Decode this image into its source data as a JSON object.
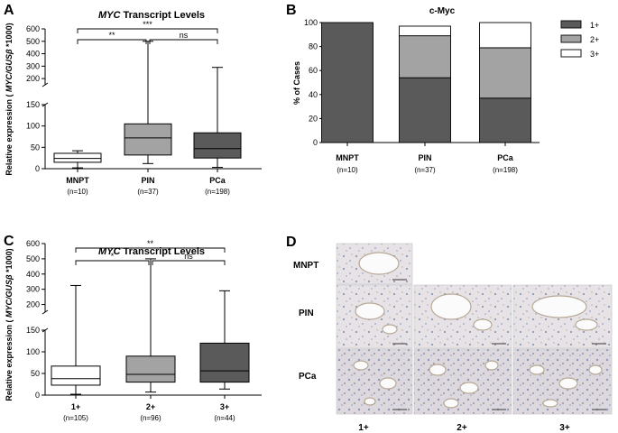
{
  "panelA": {
    "letter": "A",
    "title_italic": "MYC",
    "title_rest": " Transcript Levels",
    "ylabel_pre": "Relative expression ( ",
    "ylabel_italic": "MYC/GUSβ",
    "ylabel_post": " *1000)",
    "sig_labels": [
      "**",
      "***",
      "ns"
    ]
  },
  "panelB": {
    "letter": "B",
    "ylabel": "% of Cases"
  },
  "panelC": {
    "letter": "C",
    "title_italic": "MYC",
    "title_rest": " Transcript Levels",
    "ylabel_pre": "Relative expression ( ",
    "ylabel_italic": "MYC/GUSβ",
    "ylabel_post": " *1000)",
    "sig_labels": [
      "*",
      "**",
      "ns"
    ]
  },
  "panelD": {
    "letter": "D",
    "rows": [
      "MNPT",
      "PIN",
      "PCa"
    ],
    "cols": [
      "1+",
      "2+",
      "3+"
    ]
  },
  "chart_data": [
    {
      "type": "box",
      "id": "A",
      "title": "MYC Transcript Levels",
      "ylabel": "Relative expression ( MYC/GUSβ *1000)",
      "categories": [
        "MNPT",
        "PIN",
        "PCa"
      ],
      "n_labels": [
        "(n=10)",
        "(n=37)",
        "(n=198)"
      ],
      "boxes": [
        {
          "min": 2,
          "q1": 15,
          "median": 24,
          "q3": 36,
          "max": 42,
          "fill": "#ffffff"
        },
        {
          "min": 12,
          "q1": 32,
          "median": 72,
          "q3": 105,
          "max": 500,
          "fill": "#a3a3a3"
        },
        {
          "min": 3,
          "q1": 25,
          "median": 47,
          "q3": 84,
          "max": 290,
          "fill": "#5a5a5a"
        }
      ],
      "axis_lower": {
        "range": [
          0,
          150
        ],
        "ticks": [
          0,
          50,
          100,
          150
        ]
      },
      "axis_upper": {
        "range": [
          150,
          600
        ],
        "ticks": [
          200,
          300,
          400,
          500,
          600
        ]
      },
      "significance": [
        {
          "from": 0,
          "to": 1,
          "label": "**"
        },
        {
          "from": 0,
          "to": 2,
          "label": "***"
        },
        {
          "from": 1,
          "to": 2,
          "label": "ns"
        }
      ]
    },
    {
      "type": "stacked-bar",
      "id": "B",
      "title": "c-Myc",
      "ylabel": "% of Cases",
      "ylim": [
        0,
        100
      ],
      "yticks": [
        0,
        20,
        40,
        60,
        80,
        100
      ],
      "categories": [
        "MNPT",
        "PIN",
        "PCa"
      ],
      "n_labels": [
        "(n=10)",
        "(n=37)",
        "(n=198)"
      ],
      "series": [
        {
          "name": "1+",
          "color": "#5a5a5a",
          "values": [
            100,
            54,
            37
          ]
        },
        {
          "name": "2+",
          "color": "#a3a3a3",
          "values": [
            0,
            35,
            42
          ]
        },
        {
          "name": "3+",
          "color": "#ffffff",
          "values": [
            0,
            8,
            21
          ]
        }
      ],
      "legend": "right"
    },
    {
      "type": "box",
      "id": "C",
      "title": "MYC Transcript Levels",
      "ylabel": "Relative expression ( MYC/GUSβ *1000)",
      "categories": [
        "1+",
        "2+",
        "3+"
      ],
      "n_labels": [
        "(n=105)",
        "(n=96)",
        "(n=44)"
      ],
      "boxes": [
        {
          "min": 2,
          "q1": 23,
          "median": 38,
          "q3": 67,
          "max": 325,
          "fill": "#ffffff"
        },
        {
          "min": 7,
          "q1": 30,
          "median": 48,
          "q3": 90,
          "max": 500,
          "fill": "#a3a3a3"
        },
        {
          "min": 14,
          "q1": 30,
          "median": 56,
          "q3": 120,
          "max": 290,
          "fill": "#5a5a5a"
        }
      ],
      "axis_lower": {
        "range": [
          0,
          150
        ],
        "ticks": [
          0,
          50,
          100,
          150
        ]
      },
      "axis_upper": {
        "range": [
          150,
          600
        ],
        "ticks": [
          200,
          300,
          400,
          500,
          600
        ]
      },
      "significance": [
        {
          "from": 0,
          "to": 1,
          "label": "*"
        },
        {
          "from": 0,
          "to": 2,
          "label": "**"
        },
        {
          "from": 1,
          "to": 2,
          "label": "ns"
        }
      ]
    }
  ]
}
